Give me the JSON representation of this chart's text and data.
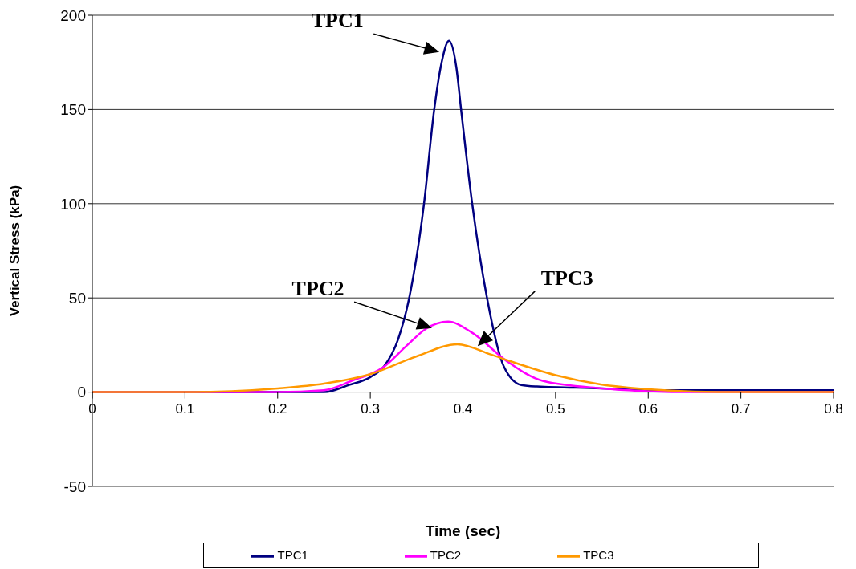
{
  "chart_data": {
    "type": "line",
    "xlabel": "Time (sec)",
    "ylabel": "Vertical Stress (kPa)",
    "xlim": [
      0,
      0.8
    ],
    "xticks": [
      0,
      0.1,
      0.2,
      0.3,
      0.4,
      0.5,
      0.6,
      0.7,
      0.8
    ],
    "ylim": [
      -50,
      200
    ],
    "yticks": [
      -50,
      0,
      50,
      100,
      150,
      200
    ],
    "grid": "y",
    "legend": "bottom",
    "marker": "none",
    "line_style": "solid",
    "series": [
      {
        "name": "TPC1",
        "color": "#000080",
        "x": [
          0,
          0.1,
          0.2,
          0.25,
          0.277,
          0.3,
          0.315,
          0.33,
          0.342,
          0.358,
          0.369,
          0.377,
          0.385,
          0.393,
          0.398,
          0.41,
          0.426,
          0.444,
          0.463,
          0.48,
          0.55,
          0.6,
          0.65,
          0.8
        ],
        "values": [
          0,
          0,
          0,
          0,
          3.8,
          8,
          13.8,
          28,
          50,
          100,
          150,
          175,
          186.5,
          172,
          150,
          100,
          50,
          13.8,
          3.8,
          3,
          2,
          1,
          1,
          1
        ]
      },
      {
        "name": "TPC2",
        "color": "#ff00ff",
        "x": [
          0,
          0.1,
          0.2,
          0.25,
          0.28,
          0.314,
          0.34,
          0.36,
          0.384,
          0.41,
          0.447,
          0.486,
          0.55,
          0.6,
          0.65,
          0.8
        ],
        "values": [
          0,
          0,
          0,
          1,
          6,
          13.2,
          25,
          33.6,
          37.4,
          31.5,
          16.6,
          6,
          2,
          0.5,
          0,
          0
        ]
      },
      {
        "name": "TPC3",
        "color": "#ff9900",
        "x": [
          0,
          0.1,
          0.15,
          0.2,
          0.25,
          0.3,
          0.35,
          0.394,
          0.43,
          0.45,
          0.5,
          0.55,
          0.6,
          0.65,
          0.7,
          0.8
        ],
        "values": [
          0,
          0,
          0.5,
          2,
          4.5,
          9.5,
          19,
          25.4,
          20,
          16.6,
          9,
          4,
          1.5,
          0.3,
          0,
          0
        ]
      }
    ],
    "annotations": [
      "TPC1",
      "TPC2",
      "TPC3"
    ]
  }
}
